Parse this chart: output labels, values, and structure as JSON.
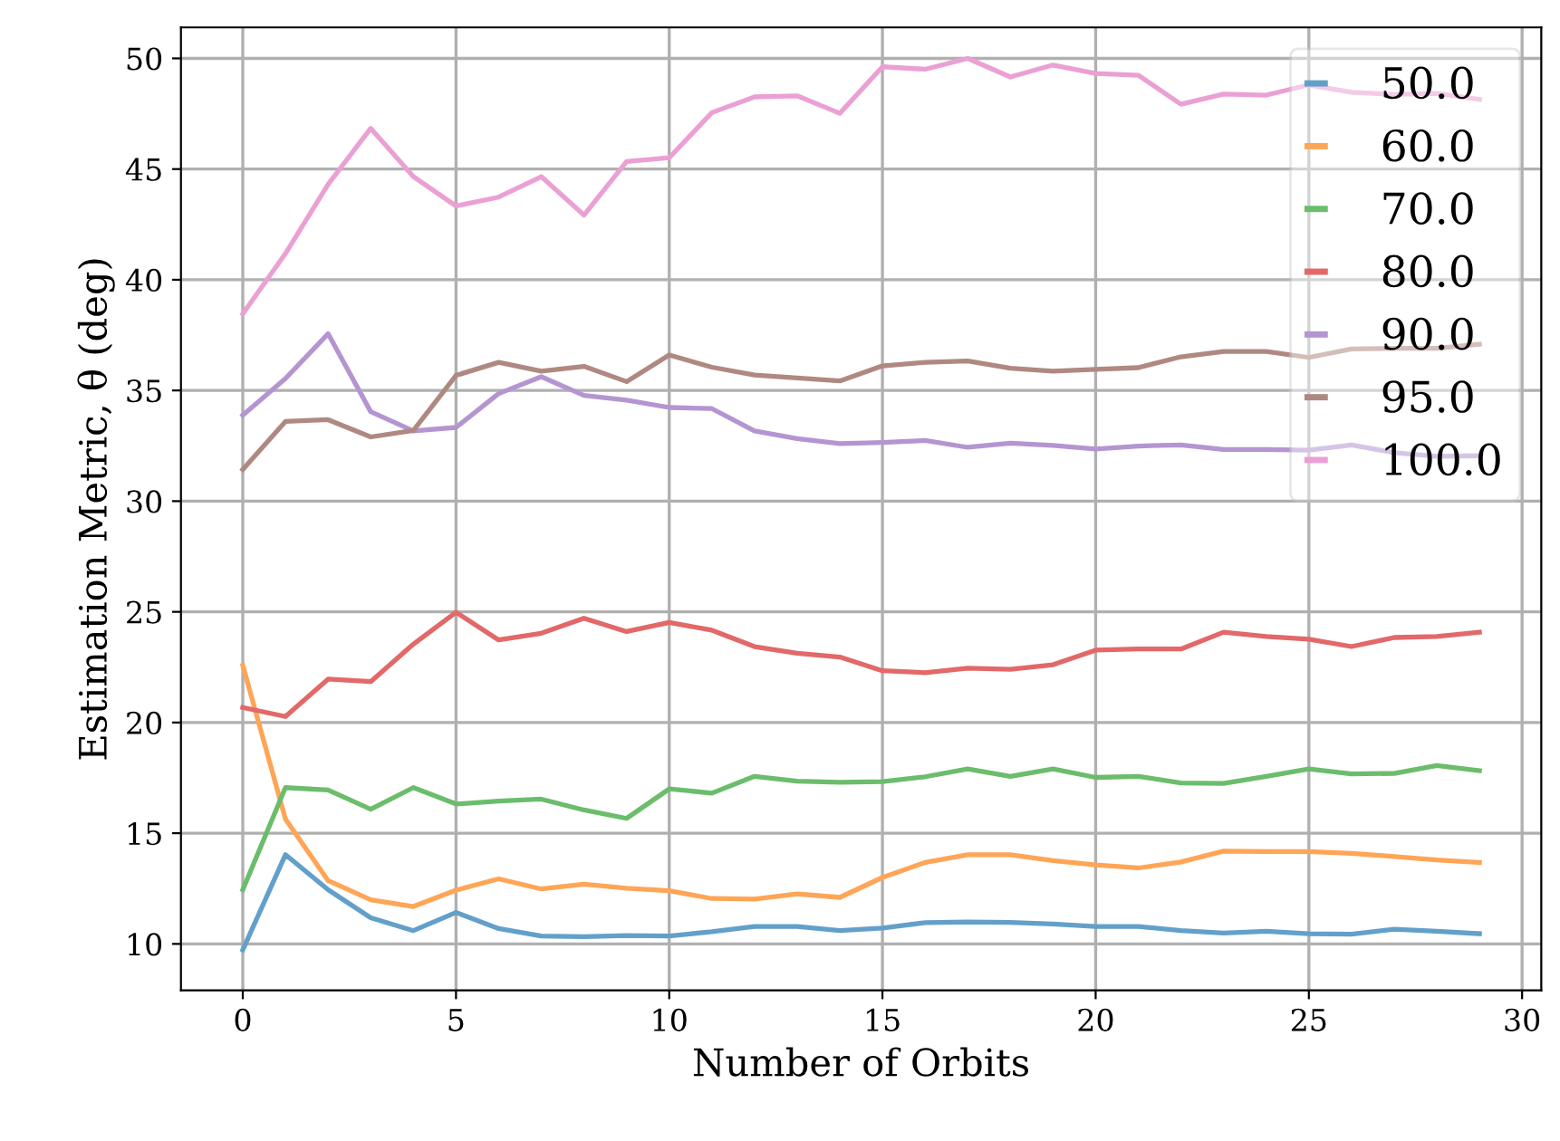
{
  "chart_data": {
    "type": "line",
    "xlabel": "Number of Orbits",
    "ylabel": "Estimation Metric, θ (deg)",
    "x": [
      0,
      1,
      2,
      3,
      4,
      5,
      6,
      7,
      8,
      9,
      10,
      11,
      12,
      13,
      14,
      15,
      16,
      17,
      18,
      19,
      20,
      21,
      22,
      23,
      24,
      25,
      26,
      27,
      28,
      29
    ],
    "xlim": [
      -1.45,
      30.45
    ],
    "xticks": [
      0,
      5,
      10,
      15,
      20,
      25,
      30
    ],
    "ylim": [
      7.9,
      51.4
    ],
    "yticks": [
      10,
      15,
      20,
      25,
      30,
      35,
      40,
      45,
      50
    ],
    "grid": true,
    "legend": "top right",
    "line_style": "solid",
    "marker": "none",
    "series": [
      {
        "name": "50.0",
        "color": "#62a0ca",
        "values": [
          9.73,
          14.03,
          12.45,
          11.18,
          10.6,
          11.42,
          10.69,
          10.36,
          10.33,
          10.38,
          10.36,
          10.55,
          10.79,
          10.79,
          10.6,
          10.71,
          10.96,
          10.99,
          10.97,
          10.9,
          10.79,
          10.79,
          10.6,
          10.49,
          10.57,
          10.46,
          10.44,
          10.66,
          10.57,
          10.46
        ]
      },
      {
        "name": "60.0",
        "color": "#ffa556",
        "values": [
          22.58,
          15.64,
          12.86,
          11.99,
          11.69,
          12.43,
          12.94,
          12.48,
          12.7,
          12.51,
          12.4,
          12.05,
          12.02,
          12.26,
          12.1,
          13.0,
          13.68,
          14.03,
          14.03,
          13.76,
          13.57,
          13.43,
          13.7,
          14.19,
          14.17,
          14.17,
          14.09,
          13.95,
          13.79,
          13.68
        ]
      },
      {
        "name": "70.0",
        "color": "#6bbd6b",
        "values": [
          12.45,
          17.06,
          16.95,
          16.08,
          17.06,
          16.32,
          16.45,
          16.54,
          16.05,
          15.67,
          17.0,
          16.81,
          17.57,
          17.35,
          17.3,
          17.33,
          17.55,
          17.9,
          17.57,
          17.9,
          17.52,
          17.57,
          17.27,
          17.25,
          17.57,
          17.9,
          17.68,
          17.7,
          18.06,
          17.82
        ]
      },
      {
        "name": "80.0",
        "color": "#e26869",
        "values": [
          20.68,
          20.27,
          21.96,
          21.85,
          23.54,
          24.98,
          23.73,
          24.03,
          24.71,
          24.11,
          24.52,
          24.17,
          23.43,
          23.13,
          22.96,
          22.34,
          22.25,
          22.45,
          22.4,
          22.61,
          23.27,
          23.32,
          23.32,
          24.08,
          23.89,
          23.76,
          23.43,
          23.84,
          23.89,
          24.08
        ]
      },
      {
        "name": "90.0",
        "color": "#b495d1",
        "values": [
          33.88,
          35.54,
          37.56,
          34.04,
          33.17,
          33.33,
          34.86,
          35.62,
          34.78,
          34.56,
          34.23,
          34.18,
          33.17,
          32.82,
          32.6,
          32.65,
          32.74,
          32.43,
          32.62,
          32.52,
          32.35,
          32.49,
          32.54,
          32.33,
          32.33,
          32.3,
          32.54,
          32.19,
          32.03,
          32.05
        ]
      },
      {
        "name": "95.0",
        "color": "#af8981",
        "values": [
          31.43,
          33.6,
          33.68,
          32.9,
          33.19,
          35.68,
          36.27,
          35.87,
          36.09,
          35.4,
          36.6,
          36.05,
          35.7,
          35.56,
          35.43,
          36.11,
          36.27,
          36.33,
          36.0,
          35.87,
          35.95,
          36.03,
          36.52,
          36.76,
          36.76,
          36.49,
          36.87,
          36.9,
          36.9,
          37.09
        ]
      },
      {
        "name": "100.0",
        "color": "#eba0d4",
        "values": [
          38.46,
          41.18,
          44.31,
          46.84,
          44.66,
          43.33,
          43.73,
          44.66,
          42.92,
          45.34,
          45.51,
          47.55,
          48.26,
          48.31,
          47.52,
          49.62,
          49.51,
          50.0,
          49.16,
          49.7,
          49.32,
          49.24,
          47.93,
          48.39,
          48.34,
          48.8,
          48.47,
          48.37,
          48.42,
          48.15
        ]
      }
    ]
  }
}
